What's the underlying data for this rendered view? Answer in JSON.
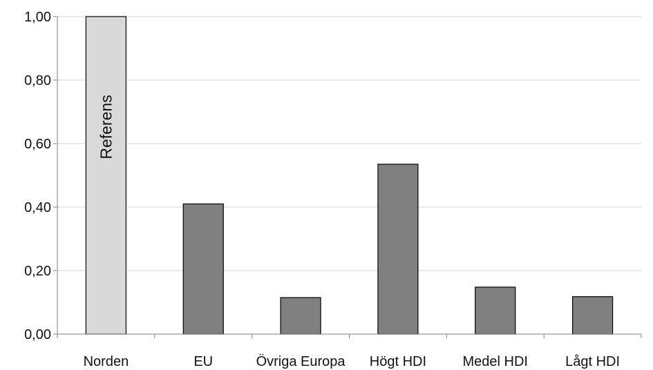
{
  "chart_data": {
    "type": "bar",
    "categories": [
      "Norden",
      "EU",
      "Övriga Europa",
      "Högt HDI",
      "Medel HDI",
      "Lågt HDI"
    ],
    "values": [
      1.0,
      0.41,
      0.115,
      0.535,
      0.148,
      0.118
    ],
    "ylim": [
      0,
      1.0
    ],
    "yticks": [
      0,
      0.2,
      0.4,
      0.6,
      0.8,
      1.0
    ],
    "ytick_labels": [
      "0,00",
      "0,20",
      "0,40",
      "0,60",
      "0,80",
      "1,00"
    ],
    "grid": true,
    "reference_index": 0,
    "reference_label": "Referens",
    "colors": {
      "reference": "#d9d9d9",
      "bar": "#808080",
      "grid": "#d0d0d0",
      "axis": "#7f7f7f"
    },
    "title": "",
    "xlabel": "",
    "ylabel": ""
  }
}
